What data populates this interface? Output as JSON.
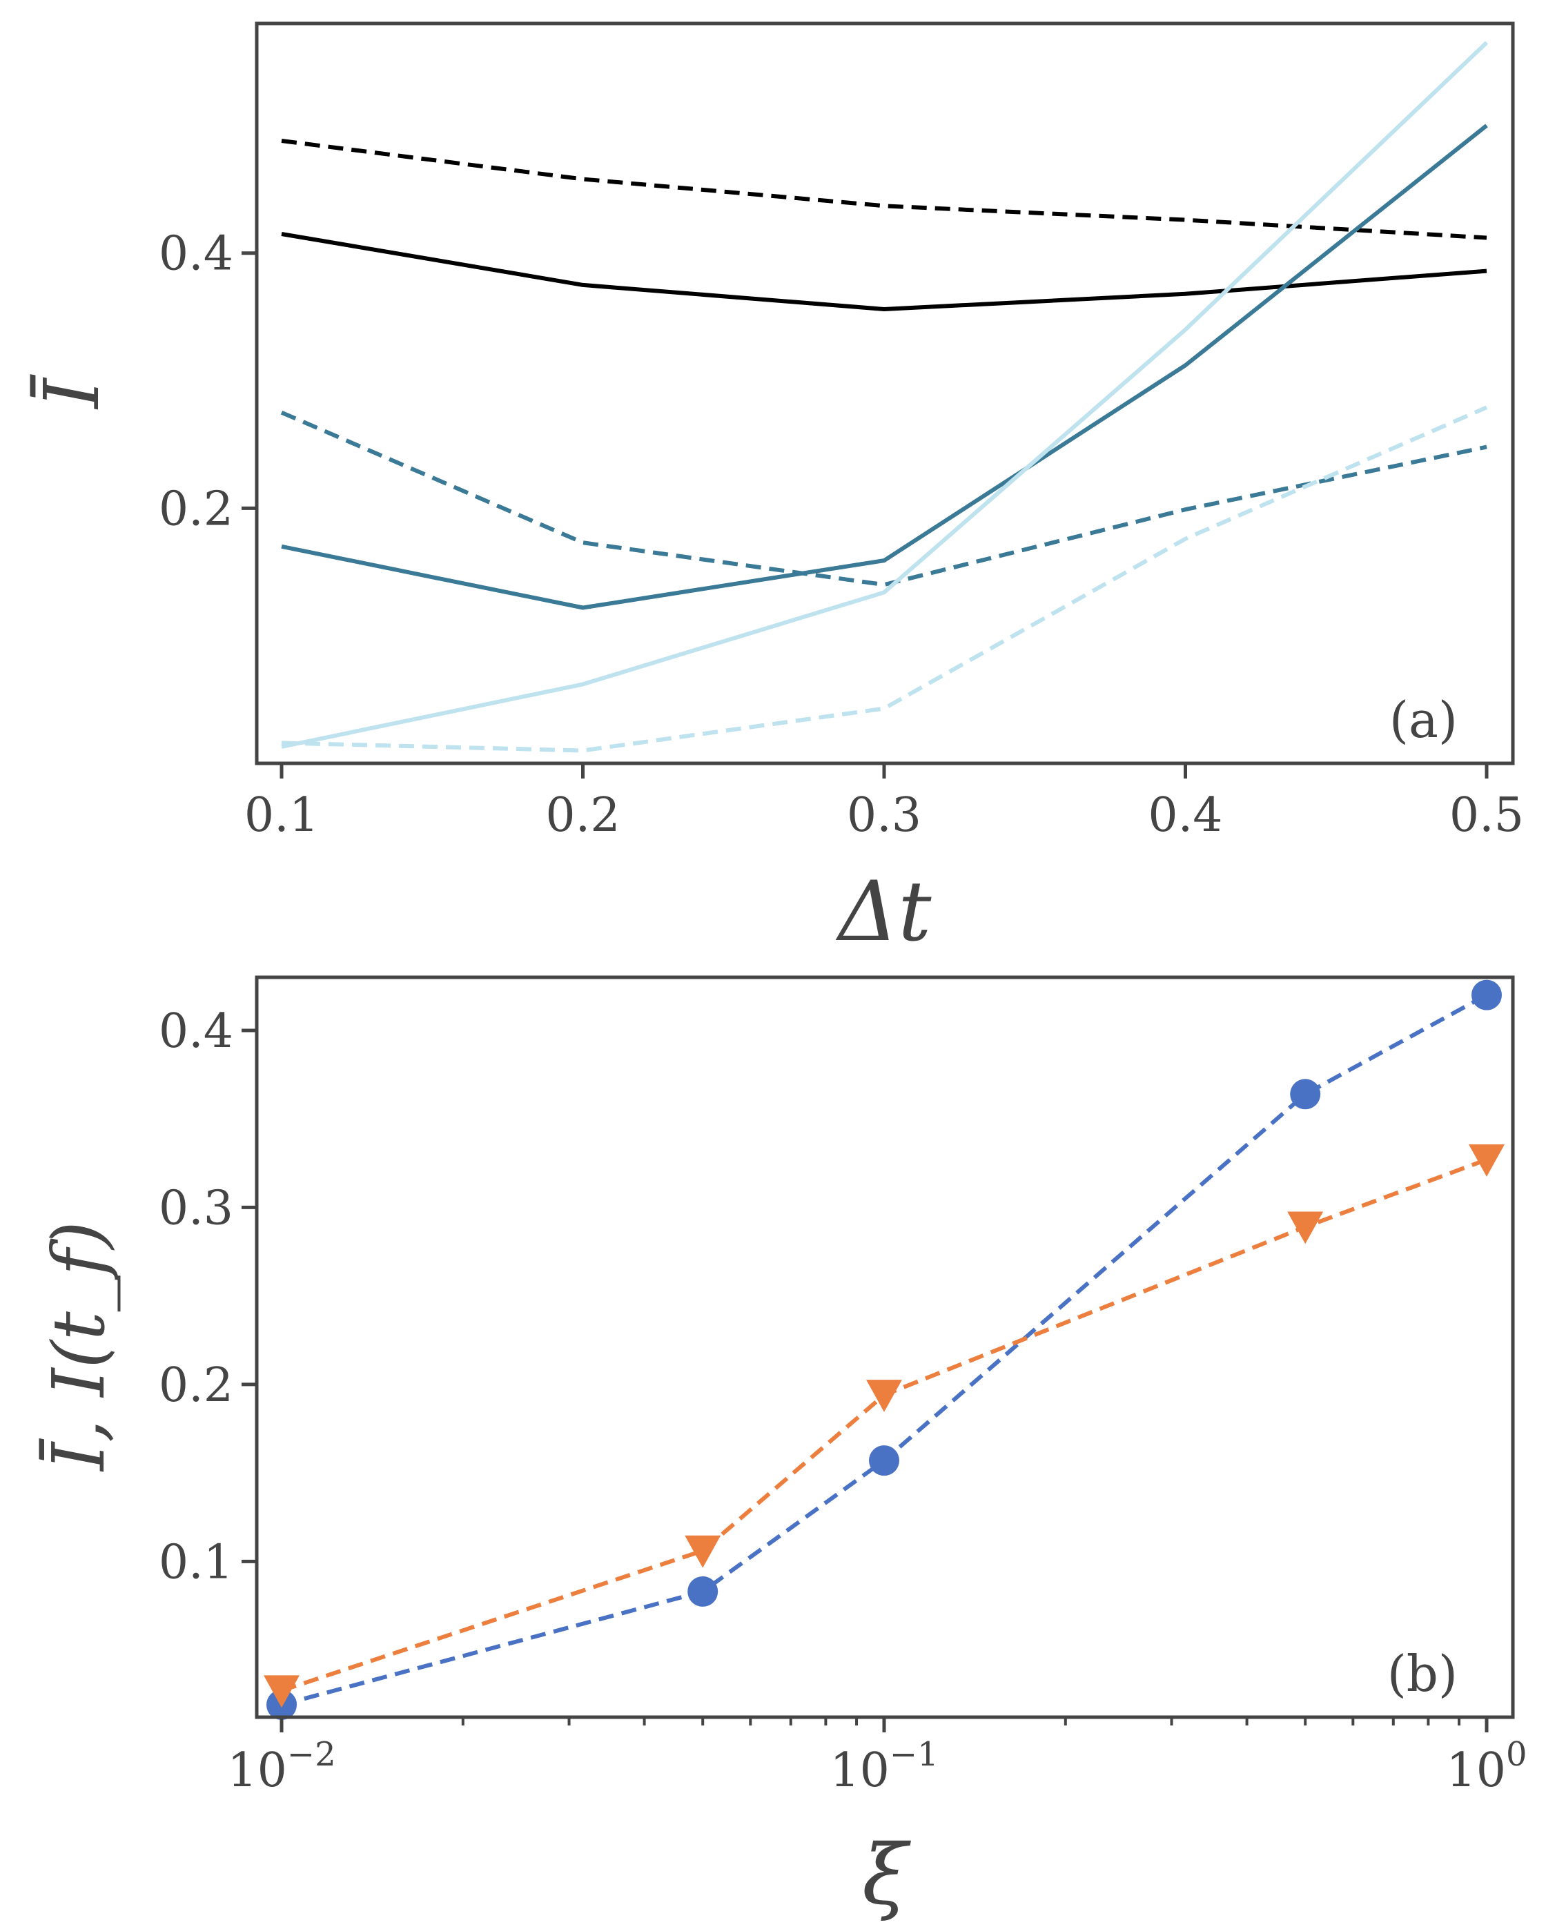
{
  "chart_data": [
    {
      "panel": "a",
      "type": "line",
      "panel_label": "(a)",
      "xlabel": "Δt",
      "ylabel": "Ī",
      "xlim": [
        0.1,
        0.5
      ],
      "ylim": [
        0.0,
        0.58
      ],
      "xticks": [
        "0.1",
        "0.2",
        "0.3",
        "0.4",
        "0.5"
      ],
      "yticks": [
        "0.2",
        "0.4"
      ],
      "x": [
        0.1,
        0.2,
        0.3,
        0.4,
        0.5
      ],
      "series": [
        {
          "name": "black-dashed",
          "color": "#000000",
          "dashed": true,
          "values": [
            0.488,
            0.458,
            0.437,
            0.426,
            0.412
          ]
        },
        {
          "name": "black-solid",
          "color": "#000000",
          "dashed": false,
          "values": [
            0.415,
            0.375,
            0.356,
            0.368,
            0.386
          ]
        },
        {
          "name": "teal-dashed",
          "color": "#3a7a96",
          "dashed": true,
          "values": [
            0.275,
            0.173,
            0.14,
            0.199,
            0.248
          ]
        },
        {
          "name": "teal-solid",
          "color": "#3a7a96",
          "dashed": false,
          "values": [
            0.17,
            0.122,
            0.159,
            0.312,
            0.5
          ]
        },
        {
          "name": "lightblue-dashed",
          "color": "#bfe2ef",
          "dashed": true,
          "values": [
            0.016,
            0.01,
            0.043,
            0.176,
            0.279
          ]
        },
        {
          "name": "lightblue-solid",
          "color": "#bfe2ef",
          "dashed": false,
          "values": [
            0.013,
            0.062,
            0.134,
            0.34,
            0.565
          ]
        }
      ]
    },
    {
      "panel": "b",
      "type": "line",
      "xscale": "log",
      "panel_label": "(b)",
      "xlabel": "ξ",
      "ylabel": "Ī, I(t_f)",
      "xlim": [
        0.01,
        1.0
      ],
      "ylim": [
        0.012,
        0.43
      ],
      "xticks": [
        {
          "base": "10",
          "exp": "−2"
        },
        {
          "base": "10",
          "exp": "−1"
        },
        {
          "base": "10",
          "exp": "0"
        }
      ],
      "yticks": [
        "0.1",
        "0.2",
        "0.3",
        "0.4"
      ],
      "x": [
        0.01,
        0.05,
        0.1,
        0.5,
        1.0
      ],
      "series": [
        {
          "name": "circles",
          "color": "#4a72c4",
          "marker": "circle",
          "dashed": true,
          "values": [
            0.019,
            0.083,
            0.157,
            0.364,
            0.42
          ]
        },
        {
          "name": "triangles",
          "color": "#ec7e3e",
          "marker": "triangle-down",
          "dashed": true,
          "values": [
            0.027,
            0.106,
            0.194,
            0.289,
            0.327
          ]
        }
      ]
    }
  ]
}
